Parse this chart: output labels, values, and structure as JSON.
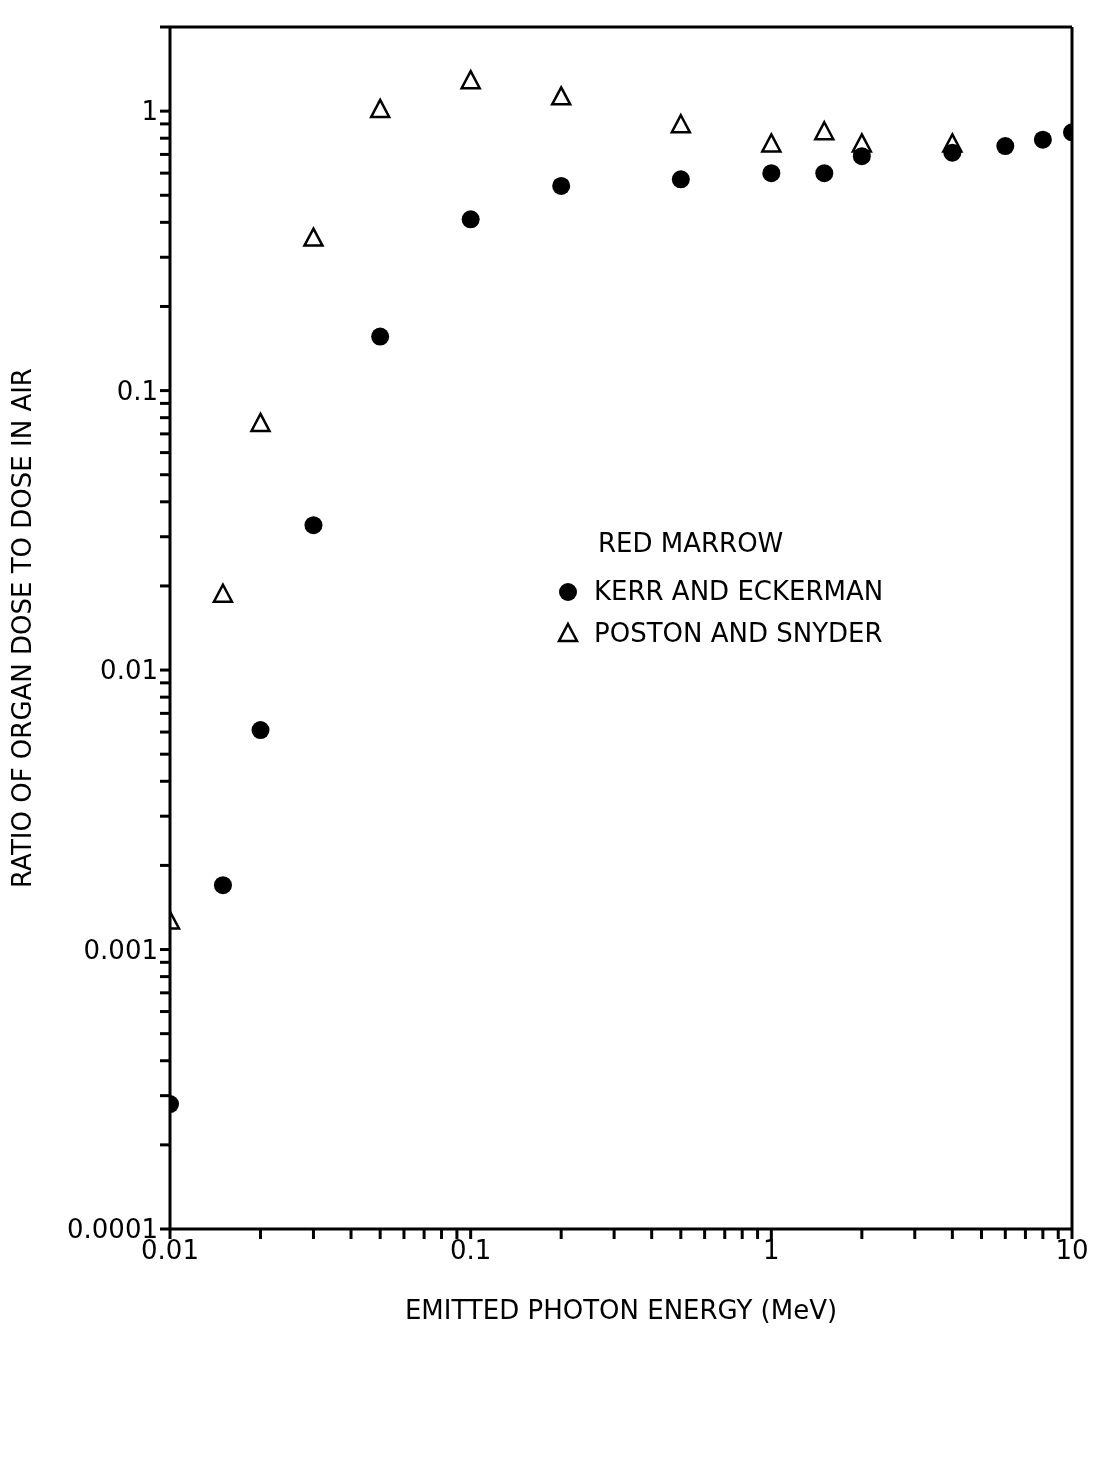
{
  "chart_data": {
    "type": "scatter",
    "xlabel": "EMITTED PHOTON ENERGY (MeV)",
    "ylabel": "RATIO OF ORGAN DOSE TO DOSE IN AIR",
    "legend_title": "RED MARROW",
    "log": "xy",
    "legend": "right",
    "xlim": [
      0.01,
      10
    ],
    "ylim": [
      0.0001,
      2
    ],
    "xticks": [
      0.01,
      {
        "value": 0.02,
        "label": null
      },
      {
        "value": 0.03,
        "label": null
      },
      {
        "value": 0.04,
        "label": null
      },
      {
        "value": 0.05,
        "label": null
      },
      {
        "value": 0.06,
        "label": null
      },
      {
        "value": 0.07,
        "label": null
      },
      {
        "value": 0.08,
        "label": null
      },
      {
        "value": 0.09,
        "label": null
      },
      0.1,
      {
        "value": 0.2,
        "label": null
      },
      {
        "value": 0.3,
        "label": null
      },
      {
        "value": 0.4,
        "label": null
      },
      {
        "value": 0.5,
        "label": null
      },
      {
        "value": 0.6,
        "label": null
      },
      {
        "value": 0.7,
        "label": null
      },
      {
        "value": 0.8,
        "label": null
      },
      {
        "value": 0.9,
        "label": null
      },
      1,
      {
        "value": 2,
        "label": null
      },
      {
        "value": 3,
        "label": null
      },
      {
        "value": 4,
        "label": null
      },
      {
        "value": 5,
        "label": null
      },
      {
        "value": 6,
        "label": null
      },
      {
        "value": 7,
        "label": null
      },
      {
        "value": 8,
        "label": null
      },
      {
        "value": 9,
        "label": null
      },
      10
    ],
    "yticks": [
      0.0001,
      {
        "value": 0.0002,
        "label": null
      },
      {
        "value": 0.0003,
        "label": null
      },
      {
        "value": 0.0004,
        "label": null
      },
      {
        "value": 0.0005,
        "label": null
      },
      {
        "value": 0.0006,
        "label": null
      },
      {
        "value": 0.0007,
        "label": null
      },
      {
        "value": 0.0008,
        "label": null
      },
      {
        "value": 0.0009,
        "label": null
      },
      0.001,
      {
        "value": 0.002,
        "label": null
      },
      {
        "value": 0.003,
        "label": null
      },
      {
        "value": 0.004,
        "label": null
      },
      {
        "value": 0.005,
        "label": null
      },
      {
        "value": 0.006,
        "label": null
      },
      {
        "value": 0.007,
        "label": null
      },
      {
        "value": 0.008,
        "label": null
      },
      {
        "value": 0.009,
        "label": null
      },
      0.01,
      {
        "value": 0.02,
        "label": null
      },
      {
        "value": 0.03,
        "label": null
      },
      {
        "value": 0.04,
        "label": null
      },
      {
        "value": 0.05,
        "label": null
      },
      {
        "value": 0.06,
        "label": null
      },
      {
        "value": 0.07,
        "label": null
      },
      {
        "value": 0.08,
        "label": null
      },
      {
        "value": 0.09,
        "label": null
      },
      0.1,
      {
        "value": 0.2,
        "label": null
      },
      {
        "value": 0.3,
        "label": null
      },
      {
        "value": 0.4,
        "label": null
      },
      {
        "value": 0.5,
        "label": null
      },
      {
        "value": 0.6,
        "label": null
      },
      {
        "value": 0.7,
        "label": null
      },
      {
        "value": 0.8,
        "label": null
      },
      {
        "value": 0.9,
        "label": null
      },
      1,
      {
        "value": 2,
        "label": null
      }
    ],
    "series": [
      {
        "name": "KERR AND ECKERMAN",
        "color": "#000000",
        "marker": "circle",
        "x": [
          0.01,
          0.015,
          0.02,
          0.03,
          0.05,
          0.1,
          0.2,
          0.5,
          1,
          1.5,
          2,
          4,
          6,
          8,
          10
        ],
        "values": [
          0.00028,
          0.0017,
          0.0061,
          0.033,
          0.156,
          0.41,
          0.54,
          0.57,
          0.6,
          0.6,
          0.69,
          0.71,
          0.75,
          0.79,
          0.84
        ]
      },
      {
        "name": "POSTON AND SNYDER",
        "color": "#000000",
        "marker": "triangle",
        "x": [
          0.01,
          0.015,
          0.02,
          0.03,
          0.05,
          0.1,
          0.2,
          0.5,
          1,
          1.5,
          2,
          4
        ],
        "values": [
          0.00126,
          0.0186,
          0.076,
          0.35,
          1.01,
          1.28,
          1.12,
          0.89,
          0.76,
          0.84,
          0.76,
          0.76
        ]
      }
    ]
  }
}
